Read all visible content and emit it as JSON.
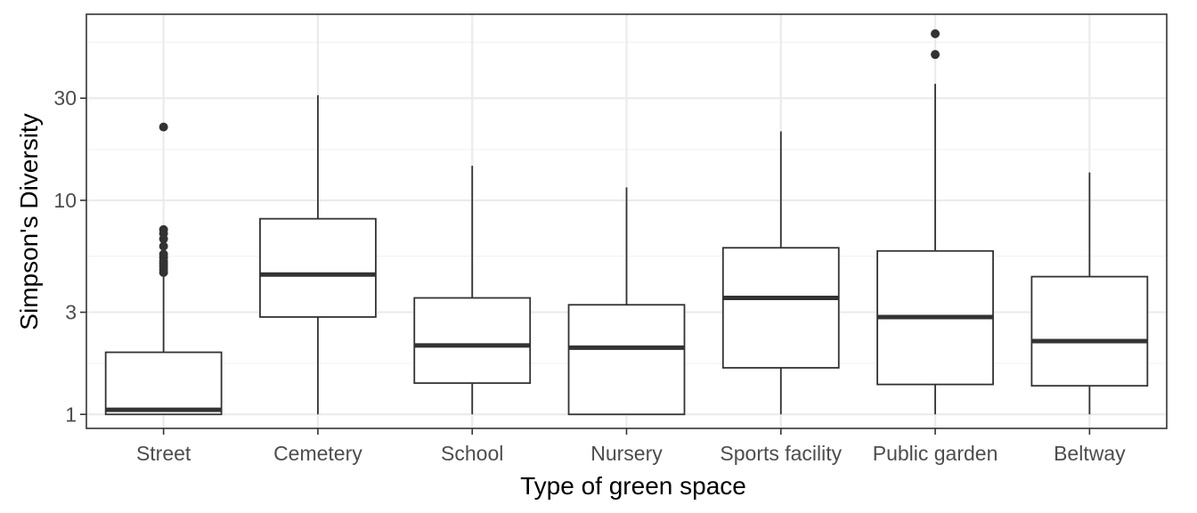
{
  "chart_data": {
    "type": "box",
    "xlabel": "Type of green space",
    "ylabel": "Simpson's Diversity",
    "y_scale": "log10",
    "ylim": [
      0.86,
      74
    ],
    "y_ticks": [
      1,
      3,
      10,
      30
    ],
    "y_tick_labels": [
      "1",
      "3",
      "10",
      "30"
    ],
    "y_minor_ticks": [
      1.73,
      5.48,
      17.3,
      54.8
    ],
    "grid": true,
    "legend": "none",
    "categories": [
      "Street",
      "Cemetery",
      "School",
      "Nursery",
      "Sports facility",
      "Public garden",
      "Beltway"
    ],
    "boxes": [
      {
        "category": "Street",
        "whisker_low": 1.0,
        "q1": 1.0,
        "median": 1.05,
        "q3": 1.95,
        "whisker_high": 4.5,
        "outliers": [
          4.6,
          4.75,
          4.9,
          5.05,
          5.2,
          5.4,
          5.6,
          6.1,
          6.6,
          7.0,
          7.3,
          22
        ]
      },
      {
        "category": "Cemetery",
        "whisker_low": 1.0,
        "q1": 2.85,
        "median": 4.5,
        "q3": 8.2,
        "whisker_high": 31,
        "outliers": []
      },
      {
        "category": "School",
        "whisker_low": 1.0,
        "q1": 1.4,
        "median": 2.1,
        "q3": 3.5,
        "whisker_high": 14.5,
        "outliers": []
      },
      {
        "category": "Nursery",
        "whisker_low": 1.0,
        "q1": 1.0,
        "median": 2.05,
        "q3": 3.25,
        "whisker_high": 11.5,
        "outliers": []
      },
      {
        "category": "Sports facility",
        "whisker_low": 1.0,
        "q1": 1.65,
        "median": 3.5,
        "q3": 6.0,
        "whisker_high": 21,
        "outliers": []
      },
      {
        "category": "Public garden",
        "whisker_low": 1.0,
        "q1": 1.38,
        "median": 2.85,
        "q3": 5.8,
        "whisker_high": 35,
        "outliers": [
          48,
          60
        ]
      },
      {
        "category": "Beltway",
        "whisker_low": 1.0,
        "q1": 1.36,
        "median": 2.2,
        "q3": 4.4,
        "whisker_high": 13.5,
        "outliers": []
      }
    ]
  }
}
